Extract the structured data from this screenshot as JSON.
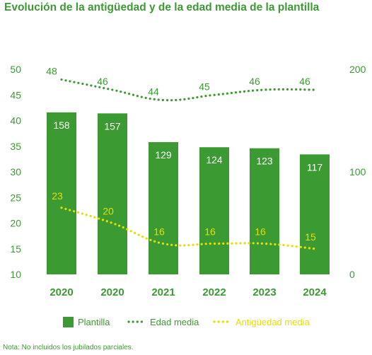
{
  "title": "Evolución de la antigüedad y de la edad media de la plantilla",
  "note": "Nota: No incluidos los jubilados parciales.",
  "colors": {
    "bars": "#3c9a33",
    "bar_labels": "#ffffff",
    "edad": "#3c9a33",
    "antiguedad": "#e4df00",
    "axis_text": "#3c9a33"
  },
  "chart_data": {
    "type": "bar",
    "categories": [
      "2020",
      "2020",
      "2021",
      "2022",
      "2023",
      "2024"
    ],
    "left_axis": {
      "ylim": [
        10,
        50
      ],
      "ticks": [
        "10",
        "15",
        "20",
        "25",
        "30",
        "35",
        "40",
        "45",
        "50"
      ]
    },
    "right_axis": {
      "ylim": [
        0,
        200
      ],
      "ticks": [
        "0",
        "100",
        "200"
      ]
    },
    "series": [
      {
        "name": "Plantilla",
        "type": "bar",
        "axis": "right",
        "values": [
          158,
          157,
          129,
          124,
          123,
          117
        ]
      },
      {
        "name": "Edad media",
        "type": "line",
        "style": "dotted",
        "axis": "left",
        "values": [
          48,
          46,
          44,
          45,
          46,
          46
        ]
      },
      {
        "name": "Antigüedad media",
        "type": "line",
        "style": "dotted",
        "axis": "left",
        "values": [
          23,
          20,
          16,
          16,
          16,
          15
        ]
      }
    ],
    "grid": false,
    "legend_position": "bottom"
  }
}
